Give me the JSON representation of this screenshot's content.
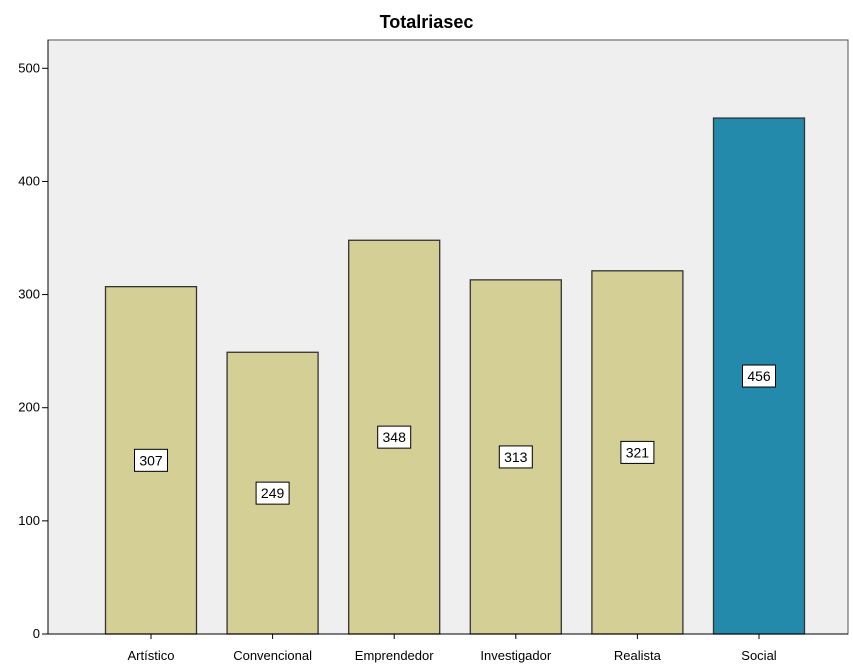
{
  "chart_data": {
    "type": "bar",
    "title": "Totalriasec",
    "xlabel": "",
    "ylabel": "",
    "categories": [
      "Artístico",
      "Convencional",
      "Emprendedor",
      "Investigador",
      "Realista",
      "Social"
    ],
    "values": [
      307,
      249,
      348,
      313,
      321,
      456
    ],
    "ylim": [
      0,
      525
    ],
    "yticks": [
      0,
      100,
      200,
      300,
      400,
      500
    ],
    "grid": false,
    "data_labels": true,
    "colors": {
      "bar_default": "#d4cf95",
      "bar_highlight": "#238aab",
      "highlight_category": "Social",
      "plot_background": "#efefef",
      "bar_outline": "#333333"
    }
  }
}
